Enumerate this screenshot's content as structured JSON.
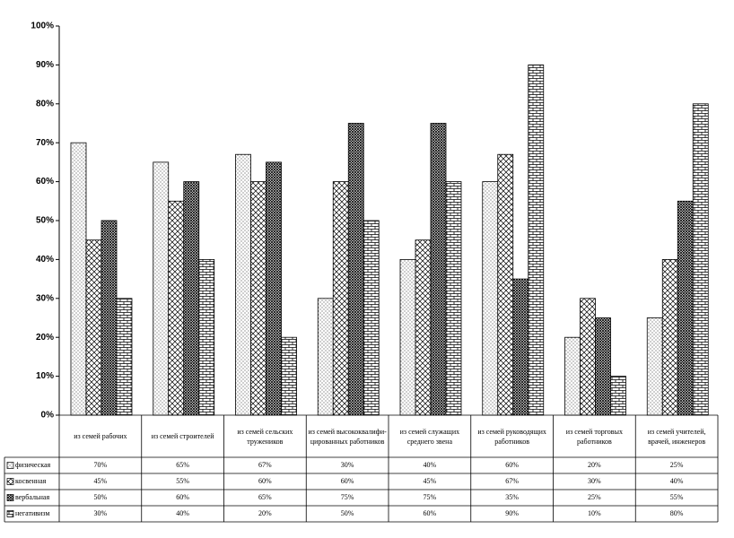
{
  "chart_data": {
    "type": "bar",
    "categories": [
      "из семей рабочих",
      "из семей строителей",
      "из семей сельских тружеников",
      "из семей высококвалифи-цированных работников",
      "из семей служащих среднего звена",
      "из семей руководящих работников",
      "из семей торговых работников",
      "из семей учителей, врачей, инженеров"
    ],
    "series": [
      {
        "name": "физическая",
        "values": [
          70,
          65,
          67,
          30,
          40,
          60,
          20,
          25
        ],
        "value_labels": [
          "70%",
          "65%",
          "67%",
          "30%",
          "40%",
          "60%",
          "20%",
          "25%"
        ]
      },
      {
        "name": "косвенная",
        "values": [
          45,
          55,
          60,
          60,
          45,
          67,
          30,
          40
        ],
        "value_labels": [
          "45%",
          "55%",
          "60%",
          "60%",
          "45%",
          "67%",
          "30%",
          "40%"
        ]
      },
      {
        "name": "вербальная",
        "values": [
          50,
          60,
          65,
          75,
          75,
          35,
          25,
          55
        ],
        "value_labels": [
          "50%",
          "60%",
          "65%",
          "75%",
          "75%",
          "35%",
          "25%",
          "55%"
        ]
      },
      {
        "name": "негативизм",
        "values": [
          30,
          40,
          20,
          50,
          60,
          90,
          10,
          80
        ],
        "value_labels": [
          "30%",
          "40%",
          "20%",
          "50%",
          "60%",
          "90%",
          "10%",
          "80%"
        ]
      }
    ],
    "ylim": [
      0,
      100
    ],
    "yticks": [
      {
        "value": 0,
        "label": "0%"
      },
      {
        "value": 10,
        "label": "10%"
      },
      {
        "value": 20,
        "label": "20%"
      },
      {
        "value": 30,
        "label": "30%"
      },
      {
        "value": 40,
        "label": "40%"
      },
      {
        "value": 50,
        "label": "50%"
      },
      {
        "value": 60,
        "label": "60%"
      },
      {
        "value": 70,
        "label": "70%"
      },
      {
        "value": 80,
        "label": "80%"
      },
      {
        "value": 90,
        "label": "90%"
      },
      {
        "value": 100,
        "label": "100%"
      }
    ],
    "grid": false
  }
}
